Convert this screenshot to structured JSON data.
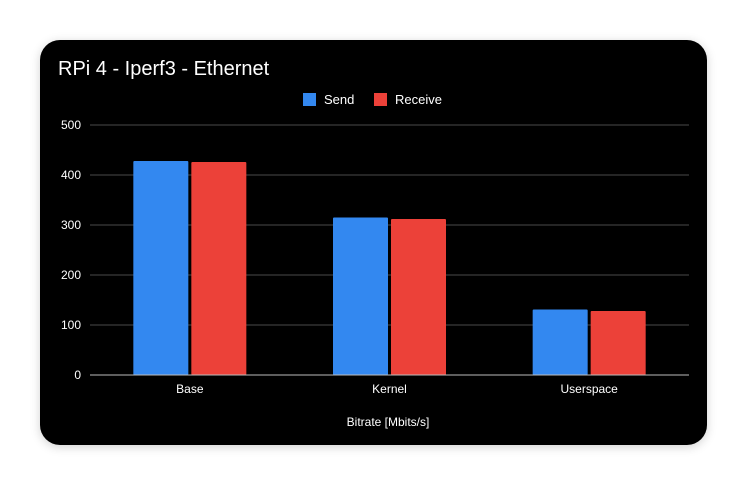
{
  "chart_data": {
    "type": "bar",
    "title": "RPi 4 - Iperf3 - Ethernet",
    "xlabel": "Bitrate [Mbits/s]",
    "ylabel": "",
    "ylim": [
      0,
      500
    ],
    "yticks": [
      0,
      100,
      200,
      300,
      400,
      500
    ],
    "categories": [
      "Base",
      "Kernel",
      "Userspace"
    ],
    "series": [
      {
        "name": "Send",
        "color": "#3388f0",
        "values": [
          428,
          315,
          131
        ]
      },
      {
        "name": "Receive",
        "color": "#ec4139",
        "values": [
          426,
          312,
          128
        ]
      }
    ],
    "legend_position": "top-center",
    "grid": true,
    "background": "#000000",
    "gridline_color": "#4a4a4a",
    "baseline_color": "#bdbdbd"
  }
}
